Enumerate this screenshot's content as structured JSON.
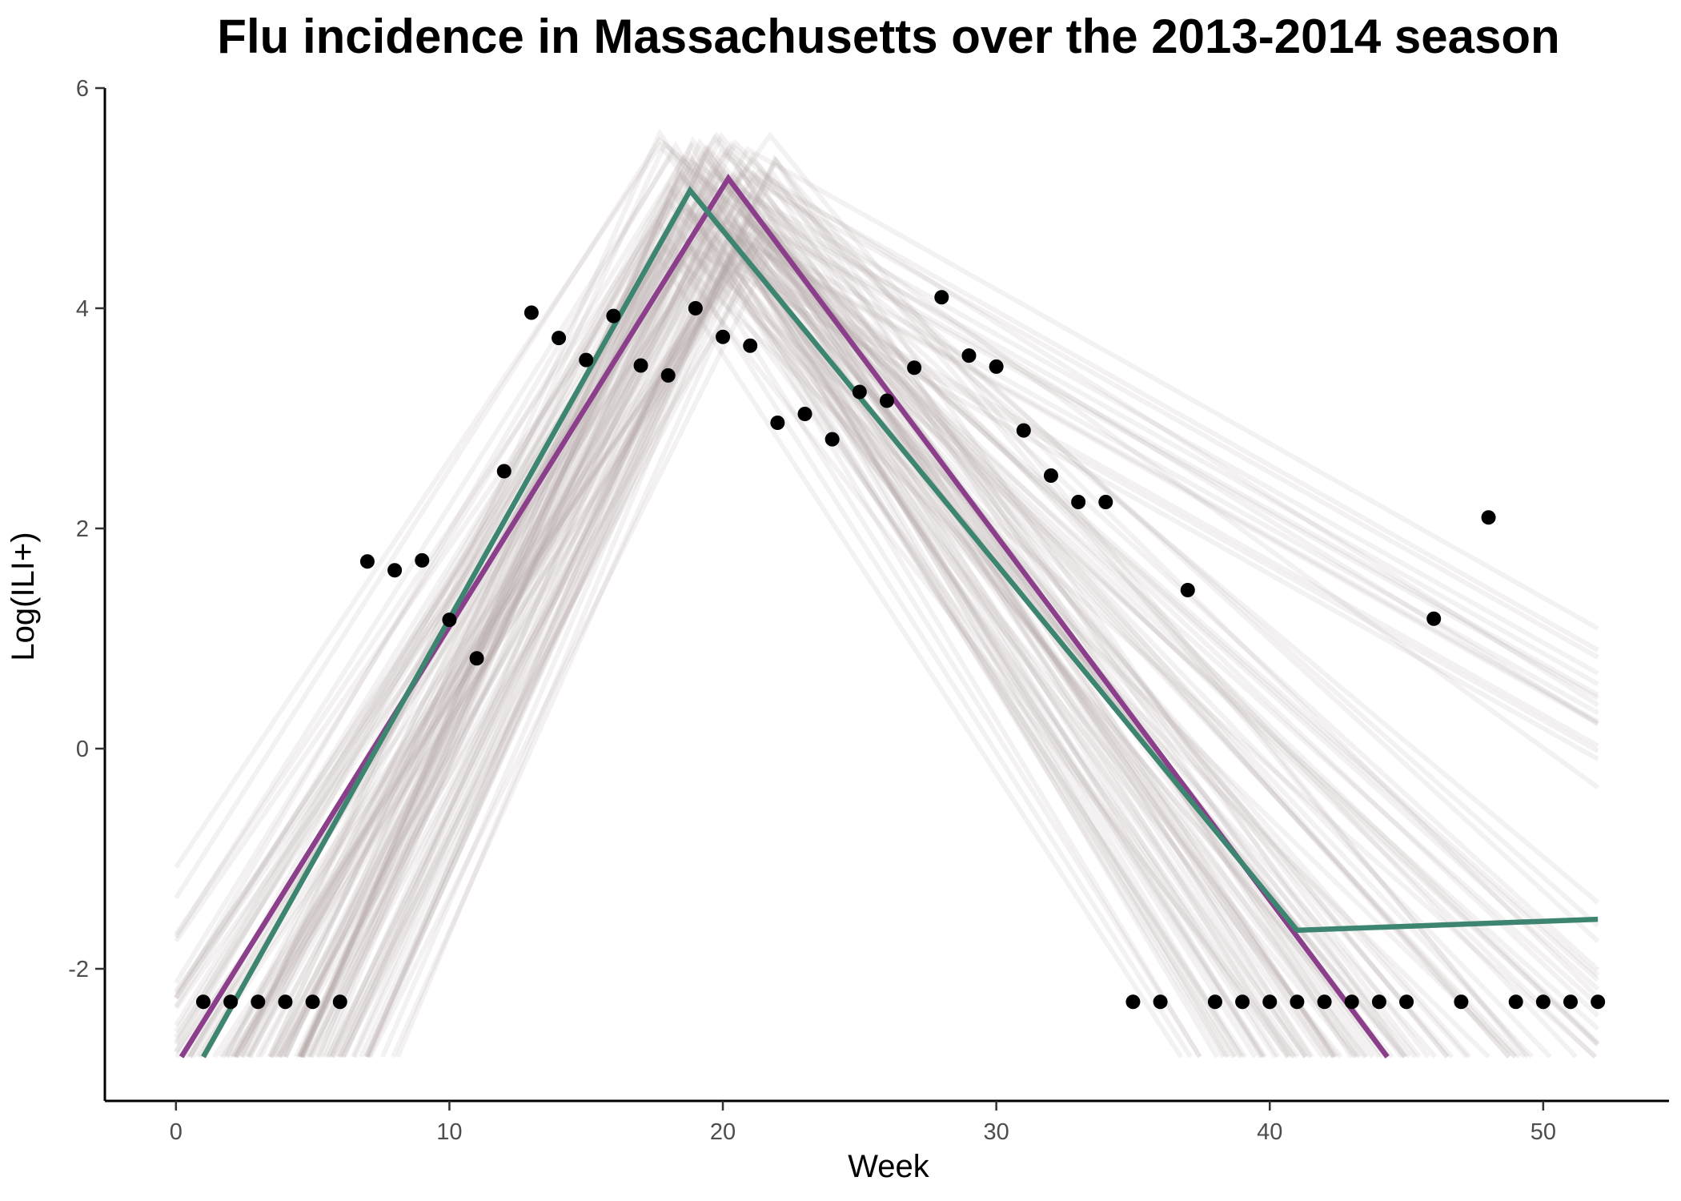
{
  "chart_data": {
    "type": "line",
    "title": "Flu incidence in Massachusetts over the 2013-2014 season",
    "xlabel": "Week",
    "ylabel": "Log(ILI+)",
    "xlim": [
      -2.6,
      54.6
    ],
    "ylim": [
      -3.2,
      6.0
    ],
    "x_ticks": [
      0,
      10,
      20,
      30,
      40,
      50
    ],
    "y_ticks": [
      -2,
      0,
      2,
      4,
      6
    ],
    "grid": false,
    "legend": "none",
    "series": [
      {
        "color": "#000000",
        "kind": "scatter",
        "x": [
          1,
          2,
          3,
          4,
          5,
          6,
          7,
          8,
          9,
          10,
          11,
          12,
          13,
          14,
          15,
          16,
          17,
          18,
          19,
          20,
          21,
          22,
          23,
          24,
          25,
          26,
          27,
          28,
          29,
          30,
          31,
          32,
          33,
          34,
          35,
          36,
          37,
          38,
          39,
          40,
          41,
          42,
          43,
          44,
          45,
          46,
          47,
          48,
          49,
          50,
          51,
          52
        ],
        "y": [
          -2.3,
          -2.3,
          -2.3,
          -2.3,
          -2.3,
          -2.3,
          1.7,
          1.62,
          1.71,
          1.17,
          0.82,
          2.52,
          3.96,
          3.73,
          3.53,
          3.93,
          3.48,
          3.39,
          4.0,
          3.74,
          3.66,
          2.96,
          3.04,
          2.81,
          3.24,
          3.16,
          3.46,
          4.1,
          3.57,
          3.47,
          2.89,
          2.48,
          2.24,
          2.24,
          -2.3,
          -2.3,
          1.44,
          -2.3,
          -2.3,
          -2.3,
          -2.3,
          -2.3,
          -2.3,
          -2.3,
          -2.3,
          1.18,
          -2.3,
          2.1,
          -2.3,
          -2.3,
          -2.3,
          -2.3
        ]
      },
      {
        "color": "#8b3f8b",
        "kind": "line",
        "x": [
          0.2,
          20.2,
          44.3
        ],
        "y": [
          -2.8,
          5.18,
          -2.8
        ]
      },
      {
        "color": "#3d8570",
        "kind": "line",
        "x": [
          1.0,
          18.8,
          41.0,
          52.0
        ],
        "y": [
          -2.8,
          5.07,
          -1.65,
          -1.55
        ]
      }
    ],
    "posterior_draws": {
      "color": "#b5a8a8",
      "opacity": 0.16,
      "count": 110,
      "peak_week_range": [
        17.5,
        22.0
      ],
      "peak_value_range": [
        4.4,
        5.6
      ],
      "floor": -2.8
    }
  }
}
